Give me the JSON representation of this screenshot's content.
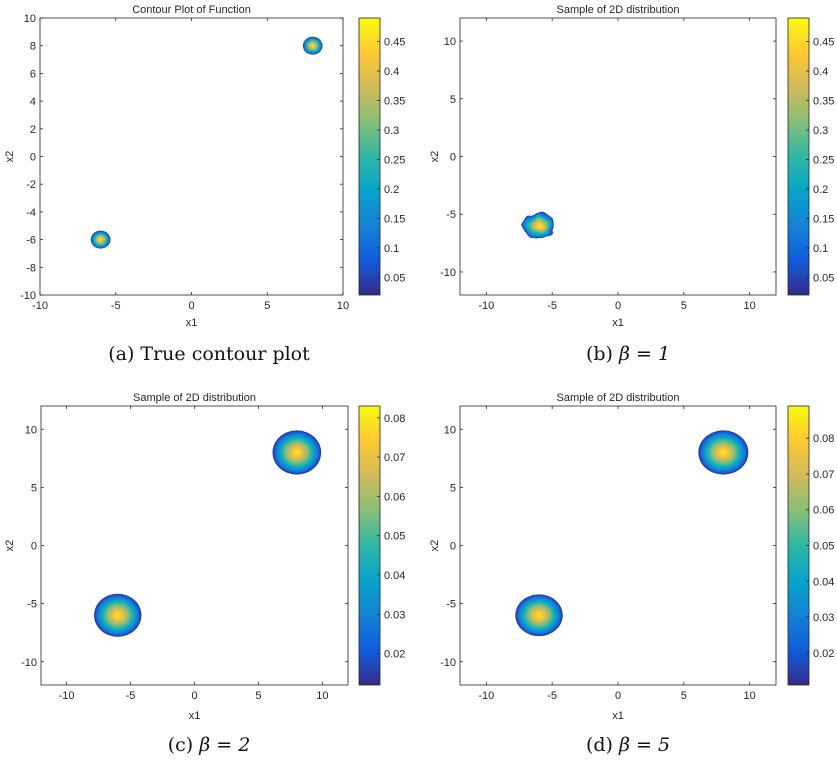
{
  "chart_data": [
    {
      "type": "contour",
      "title": "Contour Plot of Function",
      "xlabel": "x1",
      "ylabel": "x2",
      "xlim": [
        -10,
        10
      ],
      "ylim": [
        -10,
        10
      ],
      "xticks": [
        "-10",
        "-5",
        "0",
        "5",
        "10"
      ],
      "yticks": [
        "10",
        "8",
        "6",
        "4",
        "2",
        "0",
        "-2",
        "-4",
        "-6",
        "-8",
        "-10"
      ],
      "yticks_values": [
        10,
        8,
        6,
        4,
        2,
        0,
        -2,
        -4,
        -6,
        -8,
        -10
      ],
      "xticks_values": [
        -10,
        -5,
        0,
        5,
        10
      ],
      "blobs": [
        {
          "x": -6,
          "y": -6,
          "radius": 0.65,
          "peak": 0.48
        },
        {
          "x": 8,
          "y": 8,
          "radius": 0.65,
          "peak": 0.48
        }
      ],
      "colorbar": {
        "min": 0.02,
        "max": 0.49,
        "ticks": [
          "0.45",
          "0.4",
          "0.35",
          "0.3",
          "0.25",
          "0.2",
          "0.15",
          "0.1",
          "0.05"
        ],
        "ticks_values": [
          0.45,
          0.4,
          0.35,
          0.3,
          0.25,
          0.2,
          0.15,
          0.1,
          0.05
        ]
      },
      "caption_tag": "(a)",
      "caption_text": "True contour plot"
    },
    {
      "type": "scatter-density",
      "title": "Sample of 2D distribution",
      "xlabel": "x1",
      "ylabel": "x2",
      "xlim": [
        -12,
        12
      ],
      "ylim": [
        -12,
        12
      ],
      "xticks": [
        "-10",
        "-5",
        "0",
        "5",
        "10"
      ],
      "xticks_values": [
        -10,
        -5,
        0,
        5,
        10
      ],
      "yticks": [
        "10",
        "5",
        "0",
        "-5",
        "-10"
      ],
      "yticks_values": [
        10,
        5,
        0,
        -5,
        -10
      ],
      "blobs": [
        {
          "x": -6,
          "y": -6,
          "radius": 1.2,
          "peak": 0.49,
          "irregular": true
        }
      ],
      "colorbar": {
        "min": 0.02,
        "max": 0.49,
        "ticks": [
          "0.45",
          "0.4",
          "0.35",
          "0.3",
          "0.25",
          "0.2",
          "0.15",
          "0.1",
          "0.05"
        ],
        "ticks_values": [
          0.45,
          0.4,
          0.35,
          0.3,
          0.25,
          0.2,
          0.15,
          0.1,
          0.05
        ]
      },
      "caption_tag": "(b)",
      "caption_text": "β = 1"
    },
    {
      "type": "scatter-density",
      "title": "Sample of 2D distribution",
      "xlabel": "x1",
      "ylabel": "x2",
      "xlim": [
        -12,
        12
      ],
      "ylim": [
        -12,
        12
      ],
      "xticks": [
        "-10",
        "-5",
        "0",
        "5",
        "10"
      ],
      "xticks_values": [
        -10,
        -5,
        0,
        5,
        10
      ],
      "yticks": [
        "10",
        "5",
        "0",
        "-5",
        "-10"
      ],
      "yticks_values": [
        10,
        5,
        0,
        -5,
        -10
      ],
      "blobs": [
        {
          "x": -6,
          "y": -6,
          "radius": 1.85,
          "peak": 0.082
        },
        {
          "x": 8,
          "y": 8,
          "radius": 1.9,
          "peak": 0.082
        }
      ],
      "colorbar": {
        "min": 0.012,
        "max": 0.083,
        "ticks": [
          "0.08",
          "0.07",
          "0.06",
          "0.05",
          "0.04",
          "0.03",
          "0.02"
        ],
        "ticks_values": [
          0.08,
          0.07,
          0.06,
          0.05,
          0.04,
          0.03,
          0.02
        ]
      },
      "caption_tag": "(c)",
      "caption_text": "β = 2"
    },
    {
      "type": "scatter-density",
      "title": "Sample of 2D distribution",
      "xlabel": "x1",
      "ylabel": "x2",
      "xlim": [
        -12,
        12
      ],
      "ylim": [
        -12,
        12
      ],
      "xticks": [
        "-10",
        "-5",
        "0",
        "5",
        "10"
      ],
      "xticks_values": [
        -10,
        -5,
        0,
        5,
        10
      ],
      "yticks": [
        "10",
        "5",
        "0",
        "-5",
        "-10"
      ],
      "yticks_values": [
        10,
        5,
        0,
        -5,
        -10
      ],
      "blobs": [
        {
          "x": -6,
          "y": -6,
          "radius": 1.8,
          "peak": 0.088
        },
        {
          "x": 8,
          "y": 8,
          "radius": 1.9,
          "peak": 0.088
        }
      ],
      "colorbar": {
        "min": 0.011,
        "max": 0.089,
        "ticks": [
          "0.08",
          "0.07",
          "0.06",
          "0.05",
          "0.04",
          "0.03",
          "0.02"
        ],
        "ticks_values": [
          0.08,
          0.07,
          0.06,
          0.05,
          0.04,
          0.03,
          0.02
        ]
      },
      "caption_tag": "(d)",
      "caption_text": "β = 5"
    }
  ]
}
